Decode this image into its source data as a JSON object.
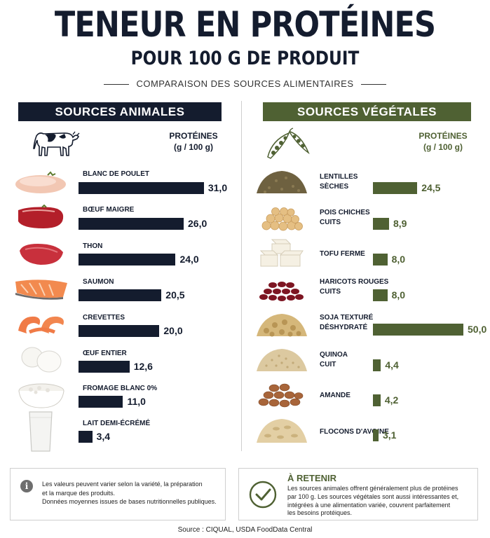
{
  "title": "TENEUR EN PROTÉINES",
  "subtitle": "POUR 100 G DE PRODUIT",
  "comparison_label": "COMPARAISON DES SOURCES ALIMENTAIRES",
  "colors": {
    "animal": "#141c2e",
    "vegetal": "#4f6133"
  },
  "chart_data": [
    {
      "type": "bar",
      "title": "SOURCES ANIMALES",
      "ylabel_line1": "PROTÉINES",
      "ylabel_line2": "(g / 100 g)",
      "header_icon": "cow-icon",
      "categories": [
        "BLANC DE POULET",
        "BŒUF MAIGRE",
        "THON",
        "SAUMON",
        "CREVETTES",
        "ŒUF ENTIER",
        "FROMAGE BLANC 0%",
        "LAIT DEMI-ÉCRÉMÉ"
      ],
      "values": [
        31.0,
        26.0,
        24.0,
        20.5,
        20.0,
        12.6,
        11.0,
        3.4
      ],
      "value_labels": [
        "31,0",
        "26,0",
        "24,0",
        "20,5",
        "20,0",
        "12,6",
        "11,0",
        "3,4"
      ],
      "icons": [
        "chicken-breast-icon",
        "beef-icon",
        "tuna-icon",
        "salmon-icon",
        "shrimp-icon",
        "egg-icon",
        "cottage-cheese-icon",
        "milk-glass-icon"
      ]
    },
    {
      "type": "bar",
      "title": "SOURCES VÉGÉTALES",
      "ylabel_line1": "PROTÉINES",
      "ylabel_line2": "(g / 100 g)",
      "header_icon": "pea-pod-icon",
      "categories": [
        [
          "LENTILLES",
          "SÈCHES"
        ],
        [
          "POIS CHICHES",
          "CUITS"
        ],
        [
          "TOFU FERME"
        ],
        [
          "HARICOTS ROUGES",
          "CUITS"
        ],
        [
          "SOJA TEXTURÉ",
          "DÉSHYDRATÉ"
        ],
        [
          "QUINOA",
          "CUIT"
        ],
        [
          "AMANDE"
        ],
        [
          "FLOCONS D'AVOINE"
        ]
      ],
      "values": [
        24.5,
        8.9,
        8.0,
        8.0,
        50.0,
        4.4,
        4.2,
        3.1
      ],
      "value_labels": [
        "24,5",
        "8,9",
        "8,0",
        "8,0",
        "50,0",
        "4,4",
        "4,2",
        "3,1"
      ],
      "icons": [
        "lentils-icon",
        "chickpeas-icon",
        "tofu-icon",
        "red-beans-icon",
        "textured-soy-icon",
        "quinoa-icon",
        "almond-icon",
        "oat-flakes-icon"
      ]
    }
  ],
  "info_box": {
    "icon": "info-icon",
    "lines": [
      "Les valeurs peuvent varier selon la variété, la préparation",
      "et la marque des produits.",
      "Données moyennes issues de bases nutritionnelles publiques."
    ]
  },
  "retain_box": {
    "icon": "check-circle-icon",
    "title": "À RETENIR",
    "lines": [
      "Les sources animales offrent généralement plus de protéines",
      "par 100 g. Les sources végétales sont aussi intéressantes et,",
      "intégrées à une alimentation variée, couvrent parfaitement",
      "les besoins protéiques."
    ]
  },
  "source": "Source : CIQUAL, USDA FoodData Central"
}
